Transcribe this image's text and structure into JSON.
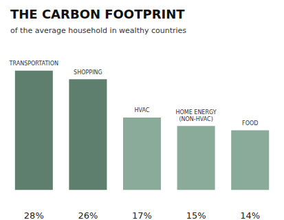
{
  "chart_data": {
    "type": "bar",
    "title": "THE CARBON FOOTPRINT",
    "subtitle": "of the average household in wealthy countries",
    "categories": [
      "TRANSPORTATION",
      "SHOPPING",
      "HVAC",
      "HOME ENERGY\n(NON-HVAC)",
      "FOOD"
    ],
    "values": [
      28,
      26,
      17,
      15,
      14
    ],
    "value_labels": [
      "28%",
      "26%",
      "17%",
      "15%",
      "14%"
    ],
    "data_labels": true,
    "colors": [
      "#5f7f6e",
      "#5f7f6e",
      "#8aab99",
      "#8aab99",
      "#8aab99"
    ],
    "ylim": [
      -4,
      32
    ],
    "tick_labels": false,
    "grid": false
  }
}
